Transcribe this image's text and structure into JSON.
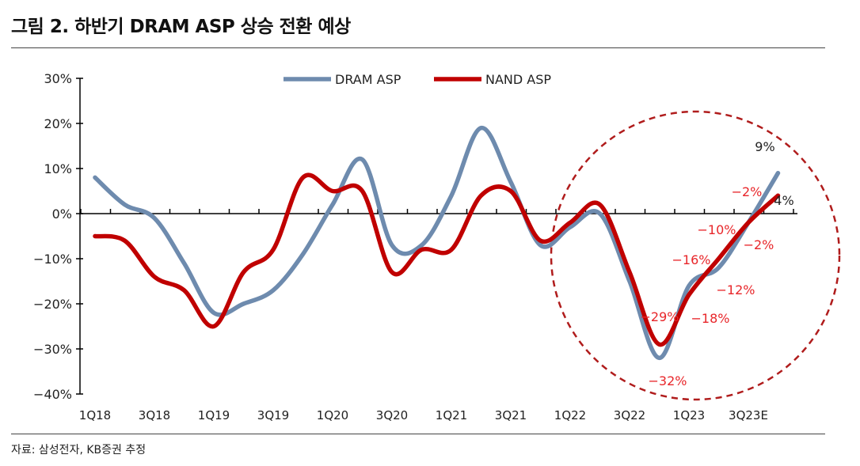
{
  "title": "그림 2. 하반기 DRAM ASP 상승 전환 예상",
  "source": "자료: 삼성전자, KB증권 추정",
  "chart_data": {
    "type": "line",
    "title": "그림 2. 하반기 DRAM ASP 상승 전환 예상",
    "xlabel": "",
    "ylabel": "",
    "ylim": [
      -40,
      30
    ],
    "yticks": [
      "30%",
      "20%",
      "10%",
      "0%",
      "−10%",
      "−20%",
      "−30%",
      "−40%"
    ],
    "ytick_values": [
      30,
      20,
      10,
      0,
      -10,
      -20,
      -30,
      -40
    ],
    "categories": [
      "1Q18",
      "2Q18",
      "3Q18",
      "4Q18",
      "1Q19",
      "2Q19",
      "3Q19",
      "4Q19",
      "1Q20",
      "2Q20",
      "3Q20",
      "4Q20",
      "1Q21",
      "2Q21",
      "3Q21",
      "4Q21",
      "1Q22",
      "2Q22",
      "3Q22",
      "4Q22",
      "1Q23",
      "2Q23",
      "3Q23",
      "4Q23E"
    ],
    "xtick_labels": [
      "1Q18",
      "3Q18",
      "1Q19",
      "3Q19",
      "1Q20",
      "3Q20",
      "1Q21",
      "3Q21",
      "1Q22",
      "3Q22",
      "1Q23",
      "3Q23E"
    ],
    "legend_position": "top",
    "grid": false,
    "series": [
      {
        "name": "DRAM ASP",
        "color": "#6e8bae",
        "values": [
          8,
          2,
          -1,
          -11,
          -22,
          -20,
          -17,
          -9,
          2,
          12,
          -7,
          -7,
          4,
          19,
          7,
          -7,
          -3,
          0,
          -15,
          -32,
          -16,
          -12,
          -2,
          9
        ]
      },
      {
        "name": "NAND ASP",
        "color": "#c00000",
        "values": [
          -5,
          -6,
          -14,
          -17,
          -25,
          -13,
          -8,
          8,
          5,
          5,
          -13,
          -8,
          -8,
          4,
          5,
          -6,
          -2,
          2,
          -13,
          -29,
          -18,
          -10,
          -2,
          4
        ]
      }
    ],
    "annotations": [
      {
        "text": "9%",
        "color": "#222222",
        "series": "DRAM ASP",
        "category": "4Q23E"
      },
      {
        "text": "4%",
        "color": "#222222",
        "series": "NAND ASP",
        "category": "4Q23E"
      },
      {
        "text": "−2%",
        "color": "#e8262a",
        "series": "DRAM ASP",
        "category": "3Q23"
      },
      {
        "text": "−10%",
        "color": "#e8262a",
        "series": "NAND ASP",
        "category": "2Q23"
      },
      {
        "text": "−16%",
        "color": "#e8262a",
        "series": "DRAM ASP",
        "category": "1Q23"
      },
      {
        "text": "−29%",
        "color": "#e8262a",
        "series": "NAND ASP",
        "category": "4Q22"
      },
      {
        "text": "−2%",
        "color": "#e8262a",
        "series": "NAND ASP",
        "category": "3Q23"
      },
      {
        "text": "−12%",
        "color": "#e8262a",
        "series": "DRAM ASP",
        "category": "2Q23"
      },
      {
        "text": "−18%",
        "color": "#e8262a",
        "series": "NAND ASP",
        "category": "1Q23"
      },
      {
        "text": "−32%",
        "color": "#e8262a",
        "series": "DRAM ASP",
        "category": "4Q22"
      }
    ],
    "highlight": {
      "shape": "dashed-circle",
      "color": "#b01c1c",
      "from": "1Q22",
      "to": "4Q23E"
    }
  }
}
